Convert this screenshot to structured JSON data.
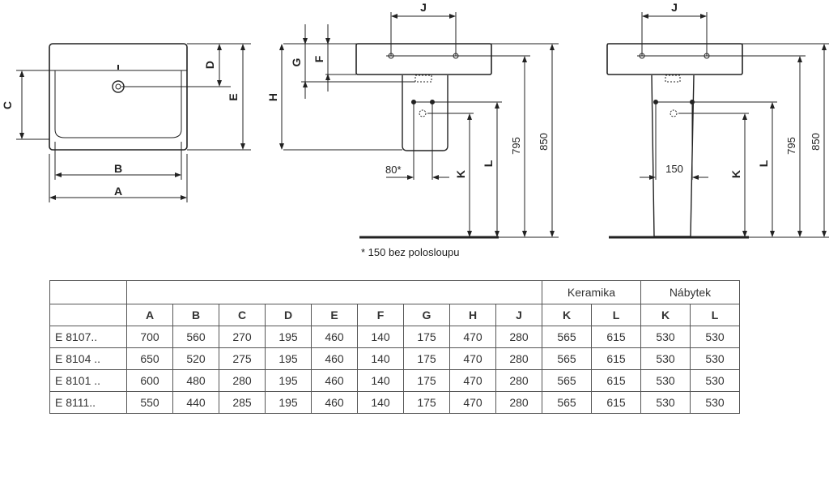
{
  "drawing": {
    "top_view": {
      "labels": [
        "A",
        "B",
        "C",
        "D",
        "E"
      ]
    },
    "side_view": {
      "labels": {
        "J": "J",
        "G": "G",
        "F": "F",
        "H": "H",
        "offset": "80*",
        "K": "K",
        "L": "L",
        "h795": "795",
        "h850": "850"
      }
    },
    "front_view": {
      "labels": {
        "J": "J",
        "offset": "150",
        "K": "K",
        "L": "L",
        "h795": "795",
        "h850": "850"
      }
    },
    "footnote": "* 150 bez polosloupu"
  },
  "table": {
    "group_headers": [
      "Keramika",
      "Nábytek"
    ],
    "columns": [
      "A",
      "B",
      "C",
      "D",
      "E",
      "F",
      "G",
      "H",
      "J",
      "K",
      "L",
      "K",
      "L"
    ],
    "rows": [
      {
        "model": "E 8107..",
        "values": [
          "700",
          "560",
          "270",
          "195",
          "460",
          "140",
          "175",
          "470",
          "280",
          "565",
          "615",
          "530",
          "530"
        ]
      },
      {
        "model": "E 8104 ..",
        "values": [
          "650",
          "520",
          "275",
          "195",
          "460",
          "140",
          "175",
          "470",
          "280",
          "565",
          "615",
          "530",
          "530"
        ]
      },
      {
        "model": "E 8101 ..",
        "values": [
          "600",
          "480",
          "280",
          "195",
          "460",
          "140",
          "175",
          "470",
          "280",
          "565",
          "615",
          "530",
          "530"
        ]
      },
      {
        "model": "E 8111..",
        "values": [
          "550",
          "440",
          "285",
          "195",
          "460",
          "140",
          "175",
          "470",
          "280",
          "565",
          "615",
          "530",
          "530"
        ]
      }
    ]
  }
}
